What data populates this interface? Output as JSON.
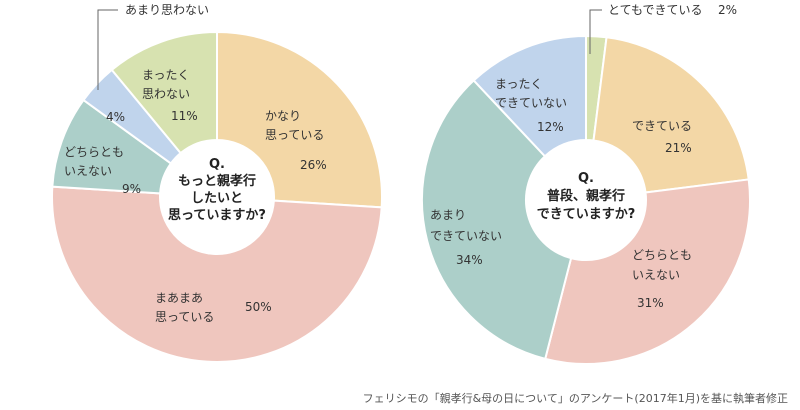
{
  "chart_data": [
    {
      "type": "pie",
      "style": "donut",
      "center_label": [
        "Q.",
        "もっと親孝行",
        "したいと",
        "思っていますか?"
      ],
      "slices": [
        {
          "label": [
            "かなり",
            "思っている"
          ],
          "value": 26,
          "display": "26%",
          "color": "#f3d7a6"
        },
        {
          "label": [
            "まあまあ",
            "思っている"
          ],
          "value": 50,
          "display": "50%",
          "color": "#efc6be"
        },
        {
          "label": [
            "どちらとも",
            "いえない"
          ],
          "value": 9,
          "display": "9%",
          "color": "#accfc9"
        },
        {
          "label": [
            "あまり思わない"
          ],
          "value": 4,
          "display": "4%",
          "color": "#c0d4ec"
        },
        {
          "label": [
            "まったく",
            "思わない"
          ],
          "value": 11,
          "display": "11%",
          "color": "#d7e2b0"
        }
      ]
    },
    {
      "type": "pie",
      "style": "donut",
      "center_label": [
        "Q.",
        "普段、親孝行",
        "できていますか?"
      ],
      "slices": [
        {
          "label": [
            "とてもできている"
          ],
          "value": 2,
          "display": "2%",
          "color": "#d7e2b0"
        },
        {
          "label": [
            "できている"
          ],
          "value": 21,
          "display": "21%",
          "color": "#f3d7a6"
        },
        {
          "label": [
            "どちらとも",
            "いえない"
          ],
          "value": 31,
          "display": "31%",
          "color": "#efc6be"
        },
        {
          "label": [
            "あまり",
            "できていない"
          ],
          "value": 34,
          "display": "34%",
          "color": "#accfc9"
        },
        {
          "label": [
            "まったく",
            "できていない"
          ],
          "value": 12,
          "display": "12%",
          "color": "#c0d4ec"
        }
      ]
    }
  ],
  "source_note": "フェリシモの「親孝行&母の日について」のアンケート(2017年1月)を基に執筆者修正"
}
